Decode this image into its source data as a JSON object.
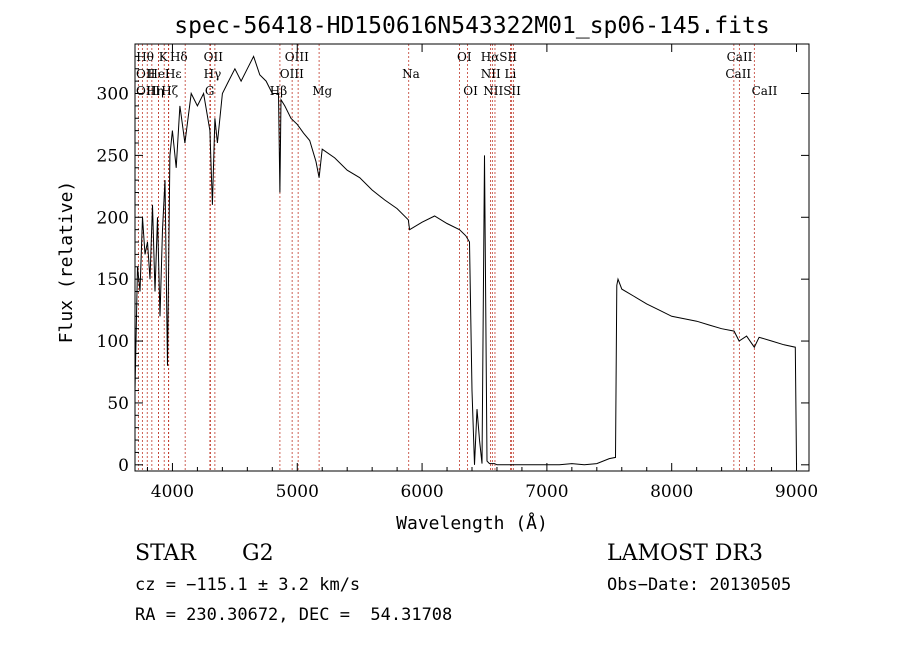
{
  "chart_data": {
    "type": "line",
    "title": "spec-56418-HD150616N543322M01_sp06-145.fits",
    "xlabel": "Wavelength (Å)",
    "ylabel": "Flux (relative)",
    "xlim": [
      3700,
      9100
    ],
    "ylim": [
      -5,
      340
    ],
    "x_ticks": [
      4000,
      5000,
      6000,
      7000,
      8000,
      9000
    ],
    "y_ticks": [
      0,
      50,
      100,
      150,
      200,
      250,
      300
    ],
    "series": [
      {
        "name": "flux",
        "x": [
          3700,
          3720,
          3740,
          3760,
          3780,
          3800,
          3820,
          3840,
          3860,
          3880,
          3900,
          3920,
          3940,
          3960,
          3980,
          4000,
          4030,
          4060,
          4100,
          4150,
          4200,
          4250,
          4300,
          4320,
          4340,
          4360,
          4400,
          4450,
          4500,
          4550,
          4600,
          4650,
          4700,
          4750,
          4800,
          4850,
          4861,
          4870,
          4900,
          4950,
          5000,
          5050,
          5100,
          5150,
          5175,
          5200,
          5300,
          5400,
          5500,
          5600,
          5700,
          5800,
          5890,
          5900,
          6000,
          6100,
          6200,
          6300,
          6350,
          6380,
          6400,
          6420,
          6440,
          6460,
          6480,
          6500,
          6520,
          6540,
          6560,
          6580,
          6600,
          6700,
          6800,
          6900,
          7000,
          7100,
          7200,
          7300,
          7400,
          7500,
          7550,
          7560,
          7570,
          7600,
          7700,
          7800,
          7900,
          8000,
          8100,
          8200,
          8300,
          8400,
          8500,
          8540,
          8600,
          8662,
          8700,
          8800,
          8900,
          8990,
          9000
        ],
        "values": [
          60,
          160,
          140,
          200,
          170,
          180,
          150,
          210,
          140,
          200,
          120,
          190,
          230,
          80,
          250,
          270,
          240,
          290,
          260,
          300,
          290,
          300,
          270,
          210,
          280,
          260,
          300,
          310,
          320,
          310,
          320,
          330,
          315,
          310,
          300,
          300,
          220,
          295,
          290,
          280,
          275,
          268,
          262,
          245,
          232,
          255,
          248,
          238,
          232,
          222,
          214,
          207,
          198,
          190,
          196,
          201,
          195,
          190,
          185,
          180,
          60,
          0,
          45,
          20,
          1,
          250,
          3,
          1,
          1,
          1,
          0,
          0,
          0,
          0,
          0,
          0,
          1,
          0,
          1,
          5,
          6,
          145,
          150,
          142,
          136,
          130,
          125,
          120,
          118,
          116,
          113,
          110,
          108,
          100,
          104,
          95,
          103,
          100,
          97,
          95,
          0
        ]
      }
    ],
    "lines": [
      {
        "name": "Hθ",
        "x": 3798
      },
      {
        "name": "OII",
        "x": 3727
      },
      {
        "name": "OIII",
        "x": 3759
      },
      {
        "name": "K",
        "x": 3934
      },
      {
        "name": "H",
        "x": 3968
      },
      {
        "name": "HeI",
        "x": 3889
      },
      {
        "name": "Hη",
        "x": 3835
      },
      {
        "name": "Hδ",
        "x": 4102
      },
      {
        "name": "Hε",
        "x": 3970
      },
      {
        "name": "Hζ",
        "x": 3889
      },
      {
        "name": "OII",
        "x": 4300
      },
      {
        "name": "Hγ",
        "x": 4340
      },
      {
        "name": "G",
        "x": 4305
      },
      {
        "name": "Hβ",
        "x": 4861
      },
      {
        "name": "OIII",
        "x": 4959
      },
      {
        "name": "OIII",
        "x": 5007
      },
      {
        "name": "Mg",
        "x": 5175
      },
      {
        "name": "Na",
        "x": 5893
      },
      {
        "name": "OI",
        "x": 6300
      },
      {
        "name": "OI",
        "x": 6364
      },
      {
        "name": "Hα",
        "x": 6563
      },
      {
        "name": "NII",
        "x": 6548
      },
      {
        "name": "NII",
        "x": 6584
      },
      {
        "name": "SII",
        "x": 6717
      },
      {
        "name": "Li",
        "x": 6708
      },
      {
        "name": "SII",
        "x": 6731
      },
      {
        "name": "CaII",
        "x": 8498
      },
      {
        "name": "CaII",
        "x": 8542
      },
      {
        "name": "CaII",
        "x": 8662
      }
    ],
    "line_labels": [
      {
        "text": "Hθ",
        "row": 0,
        "x": 3710
      },
      {
        "text": "K",
        "row": 0,
        "x": 3890
      },
      {
        "text": "Hδ",
        "row": 0,
        "x": 3980
      },
      {
        "text": "OII",
        "row": 0,
        "x": 4250
      },
      {
        "text": "OIII",
        "row": 0,
        "x": 4900
      },
      {
        "text": "OI",
        "row": 0,
        "x": 6280
      },
      {
        "text": "HαSII",
        "row": 0,
        "x": 6470
      },
      {
        "text": "CaII",
        "row": 0,
        "x": 8440
      },
      {
        "text": "OII",
        "row": 1,
        "x": 3640
      },
      {
        "text": "HeI",
        "row": 1,
        "x": 3800
      },
      {
        "text": "Hε",
        "row": 1,
        "x": 3940
      },
      {
        "text": "Hγ",
        "row": 1,
        "x": 4250
      },
      {
        "text": "OIII",
        "row": 1,
        "x": 4860
      },
      {
        "text": "Na",
        "row": 1,
        "x": 5840
      },
      {
        "text": "NII Li",
        "row": 1,
        "x": 6470
      },
      {
        "text": "CaII",
        "row": 1,
        "x": 8430
      },
      {
        "text": "OIII",
        "row": 2,
        "x": 3660
      },
      {
        "text": "Hη",
        "row": 2,
        "x": 3790
      },
      {
        "text": "Hζ",
        "row": 2,
        "x": 3910
      },
      {
        "text": "G",
        "row": 2,
        "x": 4260
      },
      {
        "text": "Hβ",
        "row": 2,
        "x": 4780
      },
      {
        "text": "Mg",
        "row": 2,
        "x": 5120
      },
      {
        "text": "OI",
        "row": 2,
        "x": 6330
      },
      {
        "text": "NIISII",
        "row": 2,
        "x": 6490
      },
      {
        "text": "CaII",
        "row": 2,
        "x": 8640
      }
    ]
  },
  "info": {
    "object_class": "STAR",
    "subclass": "G2",
    "survey": "LAMOST DR3",
    "cz": "cz = −115.1 ± 3.2 km/s",
    "obs_date": "Obs−Date: 20130505",
    "coords": "RA = 230.30672, DEC =  54.31708"
  },
  "colors": {
    "spectrum": "#000000",
    "line_marker": "#c0392b",
    "axis": "#000000"
  }
}
